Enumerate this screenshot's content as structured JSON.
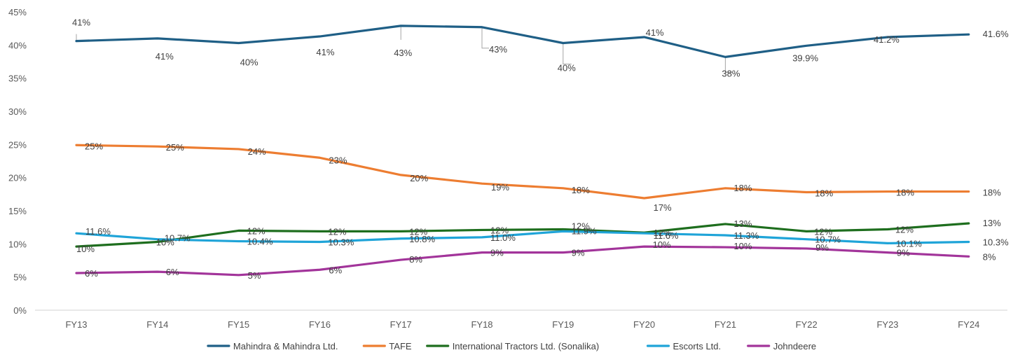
{
  "chart_data": {
    "type": "line",
    "categories": [
      "FY13",
      "FY14",
      "FY15",
      "FY16",
      "FY17",
      "FY18",
      "FY19",
      "FY20",
      "FY21",
      "FY22",
      "FY23",
      "FY24"
    ],
    "ylim": [
      0,
      45
    ],
    "yticks": [
      "0%",
      "5%",
      "10%",
      "15%",
      "20%",
      "25%",
      "30%",
      "35%",
      "40%",
      "45%"
    ],
    "grid": "horizontal",
    "legend": "bottom",
    "series": [
      {
        "name": "Mahindra & Mahindra Ltd.",
        "color": "#1f5f86",
        "values": [
          40.6,
          41.0,
          40.3,
          41.3,
          42.9,
          42.7,
          40.3,
          41.2,
          38.2,
          39.9,
          41.2,
          41.6
        ],
        "labels": [
          "41%",
          "41%",
          "40%",
          "41%",
          "43%",
          "43%",
          "40%",
          "41%",
          "38%",
          "39.9%",
          "41.2%",
          "41.6%"
        ]
      },
      {
        "name": "TAFE",
        "color": "#ed7d31",
        "values": [
          24.9,
          24.7,
          24.3,
          23.0,
          20.4,
          19.1,
          18.4,
          16.9,
          18.4,
          17.8,
          17.9,
          17.9
        ],
        "labels": [
          "25%",
          "25%",
          "24%",
          "23%",
          "20%",
          "19%",
          "18%",
          "17%",
          "18%",
          "18%",
          "18%",
          "18%"
        ]
      },
      {
        "name": "International Tractors Ltd. (Sonalika)",
        "color": "#1e6e1e",
        "values": [
          9.6,
          10.3,
          12.0,
          11.9,
          11.9,
          12.1,
          12.2,
          11.7,
          13.0,
          11.9,
          12.2,
          13.1
        ],
        "labels": [
          "10%",
          "10%",
          "12%",
          "12%",
          "12%",
          "12%",
          "12%",
          "12%",
          "13%",
          "12%",
          "12%",
          "13%"
        ]
      },
      {
        "name": "Escorts Ltd.",
        "color": "#1fa4d8",
        "values": [
          11.6,
          10.7,
          10.4,
          10.3,
          10.8,
          11.0,
          11.9,
          11.6,
          11.3,
          10.7,
          10.1,
          10.3
        ],
        "labels": [
          "11.6%",
          "10.7%",
          "10.4%",
          "10.3%",
          "10.8%",
          "11.0%",
          "11.9%",
          "11.6%",
          "11.3%",
          "10.7%",
          "10.1%",
          "10.3%"
        ]
      },
      {
        "name": "Johndeere",
        "color": "#a2349a",
        "values": [
          5.6,
          5.8,
          5.3,
          6.1,
          7.6,
          8.7,
          8.7,
          9.6,
          9.5,
          9.3,
          8.7,
          8.1
        ],
        "labels": [
          "6%",
          "6%",
          "5%",
          "6%",
          "8%",
          "9%",
          "9%",
          "10%",
          "10%",
          "9%",
          "9%",
          "8%"
        ]
      }
    ]
  }
}
